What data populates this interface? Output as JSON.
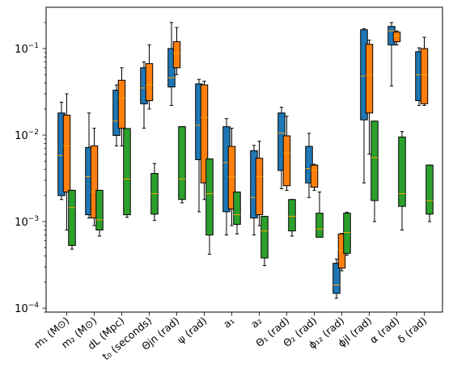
{
  "chart_data": {
    "type": "box",
    "title": "",
    "xlabel": "",
    "ylabel": "",
    "yscale": "log",
    "ylim": [
      9e-05,
      0.3
    ],
    "yticks": [
      {
        "value": 0.0001,
        "base": "10",
        "exp": "−4"
      },
      {
        "value": 0.001,
        "base": "10",
        "exp": "−3"
      },
      {
        "value": 0.01,
        "base": "10",
        "exp": "−2"
      },
      {
        "value": 0.1,
        "base": "10",
        "exp": "−1"
      }
    ],
    "categories": [
      {
        "label": "m₁ (M⊙)"
      },
      {
        "label": "m₂ (M⊙)"
      },
      {
        "label": "dL (Mpc)"
      },
      {
        "label": "t₀ (seconds)"
      },
      {
        "label": "Θjn (rad)"
      },
      {
        "label": "ψ (rad)"
      },
      {
        "label": "a₁"
      },
      {
        "label": "a₂"
      },
      {
        "label": "Θ₁ (rad)"
      },
      {
        "label": "Θ₂ (rad)"
      },
      {
        "label": "ϕ₁₂ (rad)"
      },
      {
        "label": "ϕjl (rad)"
      },
      {
        "label": "α (rad)"
      },
      {
        "label": "δ (rad)"
      }
    ],
    "series": [
      {
        "color": "#1f77b4",
        "boxes": [
          {
            "whislo": 0.0018,
            "q1": 0.002,
            "med": 0.0058,
            "q3": 0.018,
            "whishi": 0.024
          },
          {
            "whislo": 0.0011,
            "q1": 0.0012,
            "med": 0.0033,
            "q3": 0.0072,
            "whishi": 0.018
          },
          {
            "whislo": 0.0075,
            "q1": 0.0099,
            "med": 0.0145,
            "q3": 0.033,
            "whishi": 0.038
          },
          {
            "whislo": 0.012,
            "q1": 0.023,
            "med": 0.035,
            "q3": 0.06,
            "whishi": 0.07
          },
          {
            "whislo": 0.022,
            "q1": 0.036,
            "med": 0.046,
            "q3": 0.1,
            "whishi": 0.2
          },
          {
            "whislo": 0.0013,
            "q1": 0.0052,
            "med": 0.013,
            "q3": 0.039,
            "whishi": 0.044
          },
          {
            "whislo": 0.0007,
            "q1": 0.0013,
            "med": 0.0048,
            "q3": 0.0125,
            "whishi": 0.0155
          },
          {
            "whislo": 0.0007,
            "q1": 0.0011,
            "med": 0.0019,
            "q3": 0.0066,
            "whishi": 0.0076
          },
          {
            "whislo": 0.0024,
            "q1": 0.0039,
            "med": 0.0105,
            "q3": 0.018,
            "whishi": 0.021
          },
          {
            "whislo": 0.0019,
            "q1": 0.0028,
            "med": 0.0041,
            "q3": 0.0074,
            "whishi": 0.0105
          },
          {
            "whislo": 0.00013,
            "q1": 0.000148,
            "med": 0.000185,
            "q3": 0.00033,
            "whishi": 0.00037
          },
          {
            "whislo": 0.0028,
            "q1": 0.015,
            "med": 0.048,
            "q3": 0.165,
            "whishi": 0.17
          },
          {
            "whislo": 0.037,
            "q1": 0.11,
            "med": 0.16,
            "q3": 0.18,
            "whishi": 0.2
          },
          {
            "whislo": 0.022,
            "q1": 0.025,
            "med": 0.05,
            "q3": 0.092,
            "whishi": 0.102
          }
        ]
      },
      {
        "color": "#ff7f0e",
        "boxes": [
          {
            "whislo": 0.0008,
            "q1": 0.0022,
            "med": 0.0075,
            "q3": 0.017,
            "whishi": 0.03
          },
          {
            "whislo": 0.0009,
            "q1": 0.0011,
            "med": 0.0022,
            "q3": 0.0075,
            "whishi": 0.012
          },
          {
            "whislo": 0.0075,
            "q1": 0.012,
            "med": 0.027,
            "q3": 0.043,
            "whishi": 0.06
          },
          {
            "whislo": 0.02,
            "q1": 0.025,
            "med": 0.038,
            "q3": 0.067,
            "whishi": 0.11
          },
          {
            "whislo": 0.05,
            "q1": 0.06,
            "med": 0.088,
            "q3": 0.12,
            "whishi": 0.175
          },
          {
            "whislo": 0.0018,
            "q1": 0.0028,
            "med": 0.016,
            "q3": 0.038,
            "whishi": 0.042
          },
          {
            "whislo": 0.0009,
            "q1": 0.0014,
            "med": 0.0033,
            "q3": 0.0074,
            "whishi": 0.012
          },
          {
            "whislo": 0.0009,
            "q1": 0.0012,
            "med": 0.0033,
            "q3": 0.0054,
            "whishi": 0.0085
          },
          {
            "whislo": 0.0023,
            "q1": 0.0026,
            "med": 0.0062,
            "q3": 0.0098,
            "whishi": 0.0165
          },
          {
            "whislo": 0.0023,
            "q1": 0.0025,
            "med": 0.0039,
            "q3": 0.0045,
            "whishi": 0.0046
          },
          {
            "whislo": 0.00027,
            "q1": 0.00029,
            "med": 0.00047,
            "q3": 0.00072,
            "whishi": 0.00073
          },
          {
            "whislo": 0.006,
            "q1": 0.018,
            "med": 0.05,
            "q3": 0.112,
            "whishi": 0.125
          },
          {
            "whislo": 0.11,
            "q1": 0.12,
            "med": 0.14,
            "q3": 0.155,
            "whishi": 0.16
          },
          {
            "whislo": 0.022,
            "q1": 0.023,
            "med": 0.05,
            "q3": 0.1,
            "whishi": 0.135
          }
        ]
      },
      {
        "color": "#2ca02c",
        "boxes": [
          {
            "whislo": 0.00048,
            "q1": 0.00053,
            "med": 0.00145,
            "q3": 0.0023,
            "whishi": 0.0023
          },
          {
            "whislo": 0.00068,
            "q1": 0.0008,
            "med": 0.00105,
            "q3": 0.0023,
            "whishi": 0.0023
          },
          {
            "whislo": 0.00112,
            "q1": 0.0012,
            "med": 0.0031,
            "q3": 0.0119,
            "whishi": 0.0119
          },
          {
            "whislo": 0.00103,
            "q1": 0.00122,
            "med": 0.0021,
            "q3": 0.0036,
            "whishi": 0.0047
          },
          {
            "whislo": 0.00165,
            "q1": 0.0018,
            "med": 0.0031,
            "q3": 0.0125,
            "whishi": 0.0125
          },
          {
            "whislo": 0.00042,
            "q1": 0.0007,
            "med": 0.0021,
            "q3": 0.0053,
            "whishi": 0.0053
          },
          {
            "whislo": 0.00072,
            "q1": 0.00093,
            "med": 0.0012,
            "q3": 0.0022,
            "whishi": 0.0022
          },
          {
            "whislo": 0.00031,
            "q1": 0.00038,
            "med": 0.00078,
            "q3": 0.00115,
            "whishi": 0.00115
          },
          {
            "whislo": 0.00068,
            "q1": 0.00078,
            "med": 0.00115,
            "q3": 0.0018,
            "whishi": 0.0018
          },
          {
            "whislo": 0.00066,
            "q1": 0.00066,
            "med": 0.00082,
            "q3": 0.00125,
            "whishi": 0.0022
          },
          {
            "whislo": 0.00041,
            "q1": 0.00043,
            "med": 0.00075,
            "q3": 0.00125,
            "whishi": 0.00128
          },
          {
            "whislo": 0.001,
            "q1": 0.00175,
            "med": 0.0055,
            "q3": 0.0145,
            "whishi": 0.0145
          },
          {
            "whislo": 0.0008,
            "q1": 0.0015,
            "med": 0.0021,
            "q3": 0.0095,
            "whishi": 0.011
          },
          {
            "whislo": 0.001,
            "q1": 0.00122,
            "med": 0.00175,
            "q3": 0.0045,
            "whishi": 0.0045
          }
        ]
      }
    ],
    "median_color": "#ffa500"
  }
}
